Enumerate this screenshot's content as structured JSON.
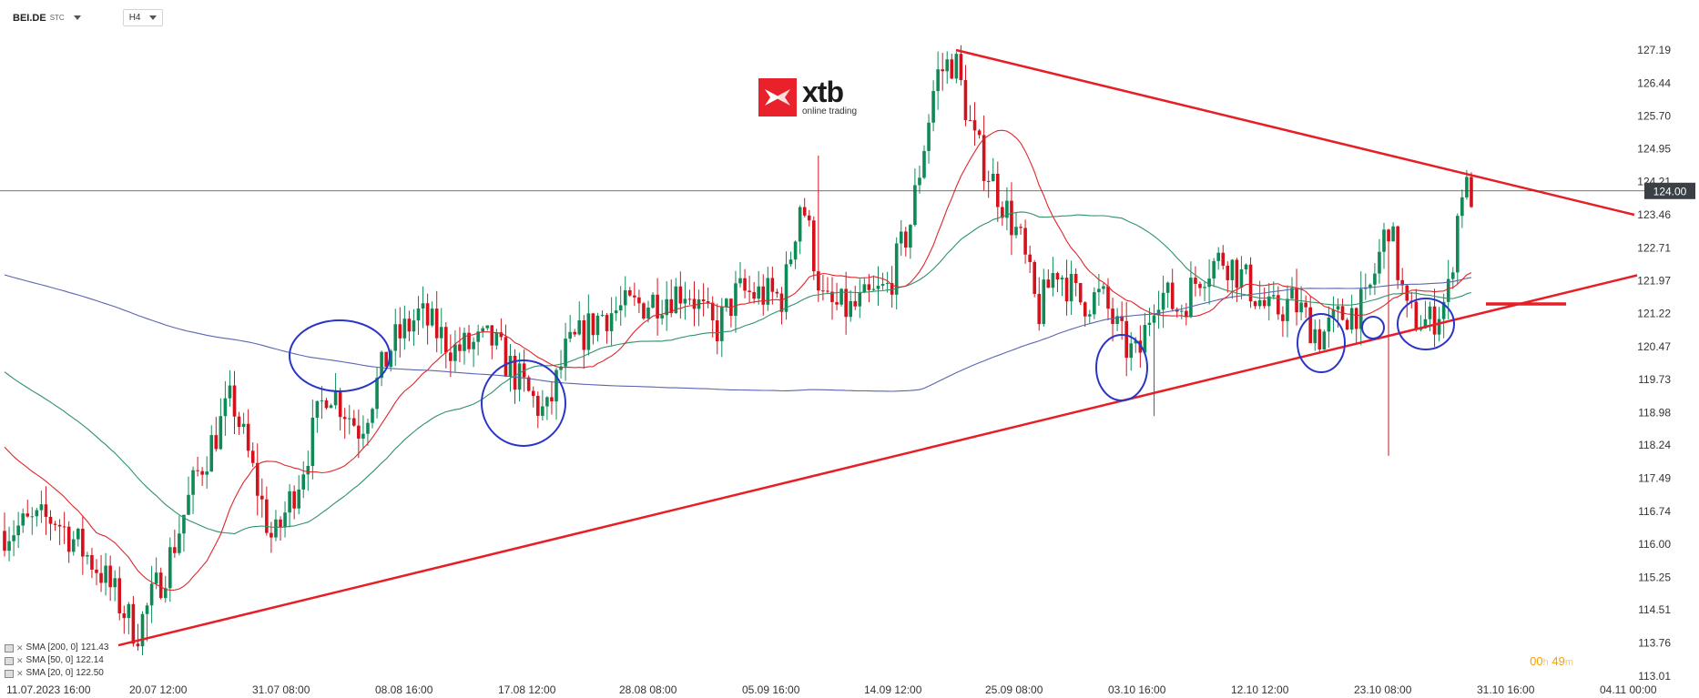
{
  "symbol": {
    "name": "BEI.DE",
    "exchange": "STC"
  },
  "timeframe": "H4",
  "logo": {
    "word": "xtb",
    "sub": "online trading"
  },
  "timer": {
    "h": "00",
    "h_unit": "h",
    "m": "49",
    "m_unit": "m"
  },
  "legend": [
    {
      "label": "SMA [200, 0]",
      "value": "121.43"
    },
    {
      "label": "SMA [50, 0]",
      "value": "122.14"
    },
    {
      "label": "SMA [20, 0]",
      "value": "122.50"
    }
  ],
  "colors": {
    "up": "#0f8a57",
    "down": "#d3121c",
    "trend": "#e61e26",
    "sma200": "#5a66b0",
    "sma50": "#2f9368",
    "sma20": "#e0262b",
    "circle": "#2a35c8"
  },
  "chart_data": {
    "type": "candlestick",
    "y_axis": {
      "min": 113.01,
      "max": 127.19,
      "ticks": [
        "127.19",
        "126.44",
        "125.70",
        "124.95",
        "124.21",
        "123.46",
        "122.71",
        "121.97",
        "121.22",
        "120.47",
        "119.73",
        "118.98",
        "118.24",
        "117.49",
        "116.74",
        "116.00",
        "115.25",
        "114.51",
        "113.76",
        "113.01"
      ]
    },
    "x_axis": {
      "labels": [
        "11.07.2023 16:00",
        "20.07 12:00",
        "31.07 08:00",
        "08.08 16:00",
        "17.08 12:00",
        "28.08 08:00",
        "05.09 16:00",
        "14.09 12:00",
        "25.09 08:00",
        "03.10 16:00",
        "12.10 12:00",
        "23.10 08:00",
        "31.10 16:00",
        "04.11 00:00"
      ]
    },
    "current_price": "124.00",
    "resistance_line": {
      "from": [
        "14.09 12:00",
        127.19
      ],
      "to": [
        "31.10 16:00",
        124.21
      ]
    },
    "support_line": {
      "from": [
        "20.07 12:00",
        113.76
      ],
      "to": [
        "31.10 16:00",
        121.22
      ]
    },
    "sma_200_last": 121.43,
    "sma_50_last": 122.14,
    "sma_20_last": 122.5
  }
}
